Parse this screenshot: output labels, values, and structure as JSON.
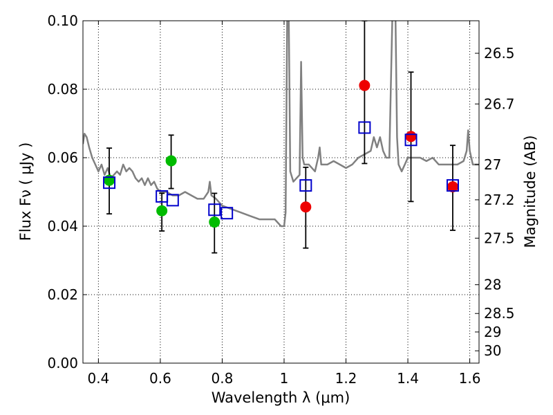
{
  "chart_data": {
    "type": "scatter",
    "xlabel": "Wavelength  λ (μm)",
    "ylabel_left": "Flux  Fν  ( μJy )",
    "ylabel_right": "Magnitude (AB)",
    "xlim": [
      0.35,
      1.63
    ],
    "ylim": [
      0.0,
      0.1
    ],
    "grid": true,
    "x_ticks": [
      0.4,
      0.6,
      0.8,
      1.0,
      1.2,
      1.4,
      1.6
    ],
    "x_tick_labels": [
      "0.4",
      "0.6",
      "0.8",
      "1",
      "1.2",
      "1.4",
      "1.6"
    ],
    "y_ticks": [
      0.0,
      0.02,
      0.04,
      0.06,
      0.08,
      0.1
    ],
    "y_tick_labels": [
      "0.00",
      "0.02",
      "0.04",
      "0.06",
      "0.08",
      "0.10"
    ],
    "mag_ticks": [
      {
        "flux": 0.0905,
        "label": "26.5"
      },
      {
        "flux": 0.0757,
        "label": "26.7"
      },
      {
        "flux": 0.058,
        "label": "27"
      },
      {
        "flux": 0.0477,
        "label": "27.2"
      },
      {
        "flux": 0.0365,
        "label": "27.5"
      },
      {
        "flux": 0.0229,
        "label": "28"
      },
      {
        "flux": 0.0145,
        "label": "28.5"
      },
      {
        "flux": 0.0091,
        "label": "29"
      },
      {
        "flux": 0.0036,
        "label": "30"
      }
    ],
    "model_sed": {
      "name": "model template",
      "color": "#808080",
      "points": [
        [
          0.35,
          0.064
        ],
        [
          0.355,
          0.067
        ],
        [
          0.362,
          0.066
        ],
        [
          0.37,
          0.063
        ],
        [
          0.38,
          0.06
        ],
        [
          0.39,
          0.058
        ],
        [
          0.4,
          0.056
        ],
        [
          0.41,
          0.058
        ],
        [
          0.42,
          0.055
        ],
        [
          0.43,
          0.057
        ],
        [
          0.44,
          0.054
        ],
        [
          0.45,
          0.055
        ],
        [
          0.46,
          0.056
        ],
        [
          0.47,
          0.055
        ],
        [
          0.48,
          0.058
        ],
        [
          0.49,
          0.056
        ],
        [
          0.5,
          0.057
        ],
        [
          0.51,
          0.056
        ],
        [
          0.52,
          0.054
        ],
        [
          0.53,
          0.053
        ],
        [
          0.54,
          0.054
        ],
        [
          0.55,
          0.052
        ],
        [
          0.56,
          0.054
        ],
        [
          0.57,
          0.052
        ],
        [
          0.58,
          0.053
        ],
        [
          0.59,
          0.051
        ],
        [
          0.6,
          0.05
        ],
        [
          0.62,
          0.05
        ],
        [
          0.64,
          0.049
        ],
        [
          0.66,
          0.049
        ],
        [
          0.68,
          0.05
        ],
        [
          0.7,
          0.049
        ],
        [
          0.72,
          0.048
        ],
        [
          0.74,
          0.048
        ],
        [
          0.755,
          0.05
        ],
        [
          0.76,
          0.053
        ],
        [
          0.765,
          0.049
        ],
        [
          0.78,
          0.048
        ],
        [
          0.8,
          0.046
        ],
        [
          0.83,
          0.045
        ],
        [
          0.86,
          0.044
        ],
        [
          0.89,
          0.043
        ],
        [
          0.92,
          0.042
        ],
        [
          0.95,
          0.042
        ],
        [
          0.97,
          0.042
        ],
        [
          0.99,
          0.04
        ],
        [
          1.0,
          0.04
        ],
        [
          1.005,
          0.044
        ],
        [
          1.01,
          0.102
        ],
        [
          1.015,
          0.102
        ],
        [
          1.02,
          0.056
        ],
        [
          1.03,
          0.053
        ],
        [
          1.04,
          0.054
        ],
        [
          1.05,
          0.055
        ],
        [
          1.055,
          0.088
        ],
        [
          1.06,
          0.06
        ],
        [
          1.065,
          0.058
        ],
        [
          1.08,
          0.058
        ],
        [
          1.09,
          0.057
        ],
        [
          1.1,
          0.056
        ],
        [
          1.11,
          0.06
        ],
        [
          1.115,
          0.063
        ],
        [
          1.12,
          0.058
        ],
        [
          1.14,
          0.058
        ],
        [
          1.16,
          0.059
        ],
        [
          1.18,
          0.058
        ],
        [
          1.2,
          0.057
        ],
        [
          1.22,
          0.058
        ],
        [
          1.24,
          0.06
        ],
        [
          1.26,
          0.061
        ],
        [
          1.28,
          0.062
        ],
        [
          1.29,
          0.066
        ],
        [
          1.3,
          0.063
        ],
        [
          1.31,
          0.066
        ],
        [
          1.32,
          0.062
        ],
        [
          1.33,
          0.06
        ],
        [
          1.34,
          0.06
        ],
        [
          1.35,
          0.102
        ],
        [
          1.36,
          0.102
        ],
        [
          1.365,
          0.066
        ],
        [
          1.37,
          0.058
        ],
        [
          1.38,
          0.056
        ],
        [
          1.39,
          0.058
        ],
        [
          1.4,
          0.06
        ],
        [
          1.42,
          0.06
        ],
        [
          1.44,
          0.06
        ],
        [
          1.46,
          0.059
        ],
        [
          1.48,
          0.06
        ],
        [
          1.5,
          0.058
        ],
        [
          1.52,
          0.058
        ],
        [
          1.54,
          0.058
        ],
        [
          1.56,
          0.058
        ],
        [
          1.58,
          0.059
        ],
        [
          1.59,
          0.062
        ],
        [
          1.595,
          0.068
        ],
        [
          1.6,
          0.062
        ],
        [
          1.61,
          0.058
        ],
        [
          1.63,
          0.058
        ]
      ]
    },
    "series": [
      {
        "name": "green photometry",
        "color": "#00bb00",
        "marker": "circle",
        "points": [
          {
            "x": 0.435,
            "y": 0.0534
          },
          {
            "x": 0.605,
            "y": 0.0445
          },
          {
            "x": 0.635,
            "y": 0.0591
          },
          {
            "x": 0.775,
            "y": 0.0412
          }
        ]
      },
      {
        "name": "red photometry",
        "color": "#ee0000",
        "marker": "circle",
        "points": [
          {
            "x": 1.07,
            "y": 0.0456
          },
          {
            "x": 1.26,
            "y": 0.0811
          },
          {
            "x": 1.41,
            "y": 0.0662
          },
          {
            "x": 1.545,
            "y": 0.0515
          }
        ]
      },
      {
        "name": "model photometry",
        "color": "#0000cc",
        "marker": "open-square",
        "points": [
          {
            "x": 0.435,
            "y": 0.0527
          },
          {
            "x": 0.605,
            "y": 0.0487
          },
          {
            "x": 0.64,
            "y": 0.0476
          },
          {
            "x": 0.775,
            "y": 0.0448
          },
          {
            "x": 0.815,
            "y": 0.0438
          },
          {
            "x": 1.07,
            "y": 0.0519
          },
          {
            "x": 1.26,
            "y": 0.0688
          },
          {
            "x": 1.41,
            "y": 0.0652
          },
          {
            "x": 1.545,
            "y": 0.0519
          }
        ]
      }
    ],
    "error_bars": {
      "color": "#000000",
      "bars": [
        {
          "x": 0.435,
          "low": 0.0436,
          "high": 0.0628
        },
        {
          "x": 0.605,
          "low": 0.0386,
          "high": 0.0496
        },
        {
          "x": 0.635,
          "low": 0.051,
          "high": 0.0666
        },
        {
          "x": 0.775,
          "low": 0.0322,
          "high": 0.0496
        },
        {
          "x": 1.07,
          "low": 0.0336,
          "high": 0.0572
        },
        {
          "x": 1.26,
          "low": 0.0583,
          "high": 0.1
        },
        {
          "x": 1.41,
          "low": 0.0472,
          "high": 0.085
        },
        {
          "x": 1.545,
          "low": 0.0388,
          "high": 0.0636
        }
      ]
    }
  }
}
